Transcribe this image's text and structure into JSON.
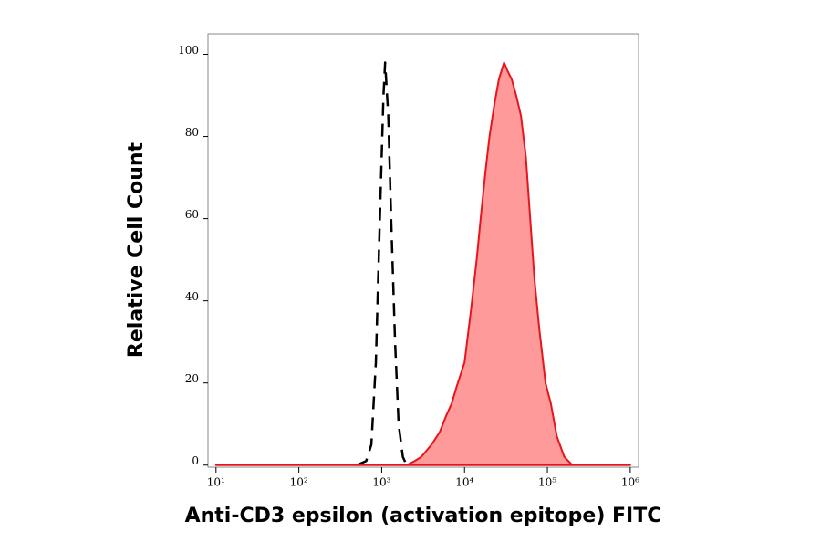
{
  "chart_data": {
    "type": "area",
    "xlabel": "Anti-CD3 epsilon (activation epitope) FITC",
    "ylabel": "Relative Cell Count",
    "xscale": "log",
    "xlim": [
      8,
      1260000
    ],
    "ylim": [
      -0.5,
      105
    ],
    "xticks": [
      {
        "value": 10,
        "label": "10¹"
      },
      {
        "value": 100,
        "label": "10²"
      },
      {
        "value": 1000,
        "label": "10³"
      },
      {
        "value": 10000,
        "label": "10⁴"
      },
      {
        "value": 100000,
        "label": "10⁵"
      },
      {
        "value": 1000000,
        "label": "10⁶"
      }
    ],
    "yticks": [
      0,
      20,
      40,
      60,
      80,
      100
    ],
    "series": [
      {
        "color": "#000000",
        "fill": "none",
        "dashed": true,
        "x": [
          500,
          650,
          750,
          850,
          950,
          1050,
          1100,
          1200,
          1300,
          1450,
          1600,
          1800,
          2000
        ],
        "values": [
          0,
          1,
          5,
          25,
          60,
          90,
          98,
          85,
          60,
          30,
          10,
          2,
          0
        ]
      },
      {
        "color": "#e8141c",
        "fill": "#ff9a9a",
        "dashed": false,
        "x": [
          10,
          2000,
          2500,
          3000,
          4000,
          5000,
          6000,
          7000,
          8000,
          10000,
          12000,
          14000,
          16000,
          18000,
          20000,
          23000,
          26000,
          30000,
          33000,
          37000,
          42000,
          48000,
          55000,
          62000,
          70000,
          80000,
          95000,
          110000,
          130000,
          160000,
          200000,
          1000000
        ],
        "values": [
          0,
          0,
          1,
          2,
          5,
          8,
          12,
          15,
          19,
          25,
          38,
          50,
          62,
          72,
          80,
          88,
          94,
          98,
          96,
          94,
          90,
          85,
          75,
          60,
          45,
          33,
          20,
          15,
          7,
          2,
          0,
          0
        ]
      }
    ]
  }
}
